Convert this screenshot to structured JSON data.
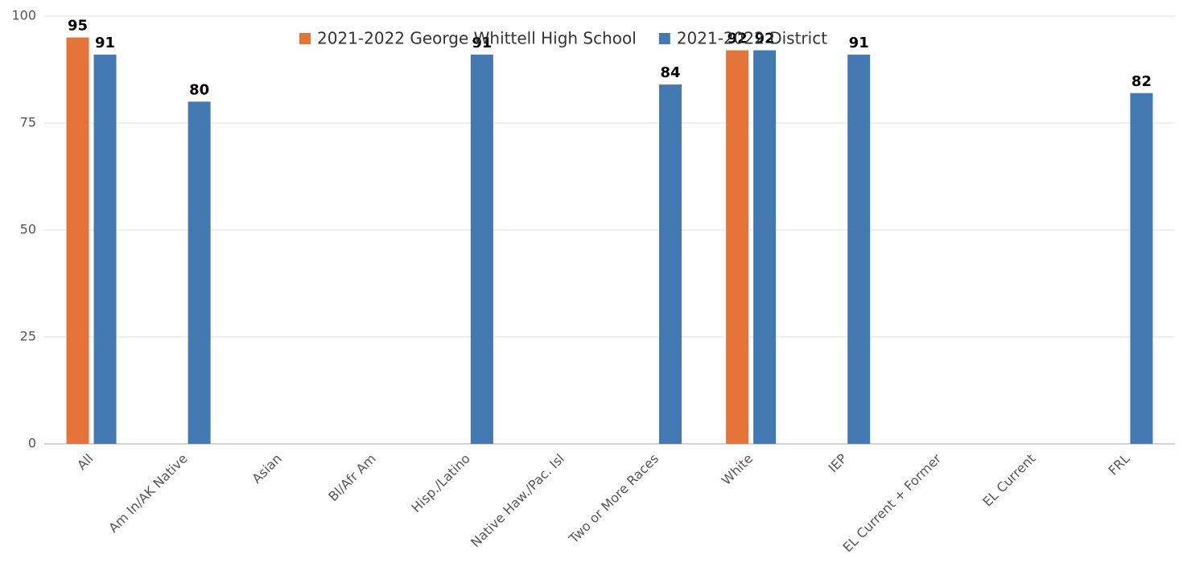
{
  "chart_data": {
    "type": "bar",
    "categories": [
      "All",
      "Am In/AK Native",
      "Asian",
      "Bl/Afr Am",
      "Hisp./Latino",
      "Native Haw./Pac. Isl",
      "Two or More Races",
      "White",
      "IEP",
      "EL Current + Former",
      "EL Current",
      "FRL"
    ],
    "series": [
      {
        "name": "2021-2022 George Whittell High School",
        "color": "#e5743a",
        "values": [
          95,
          null,
          null,
          null,
          null,
          null,
          null,
          92,
          null,
          null,
          null,
          null
        ]
      },
      {
        "name": "2021-2022 District",
        "color": "#4478b2",
        "values": [
          91,
          80,
          null,
          null,
          91,
          null,
          84,
          92,
          91,
          null,
          null,
          82
        ]
      }
    ],
    "ylim": [
      0,
      100
    ],
    "yticks": [
      0,
      25,
      50,
      75,
      100
    ],
    "grid": true,
    "legend": "top"
  }
}
